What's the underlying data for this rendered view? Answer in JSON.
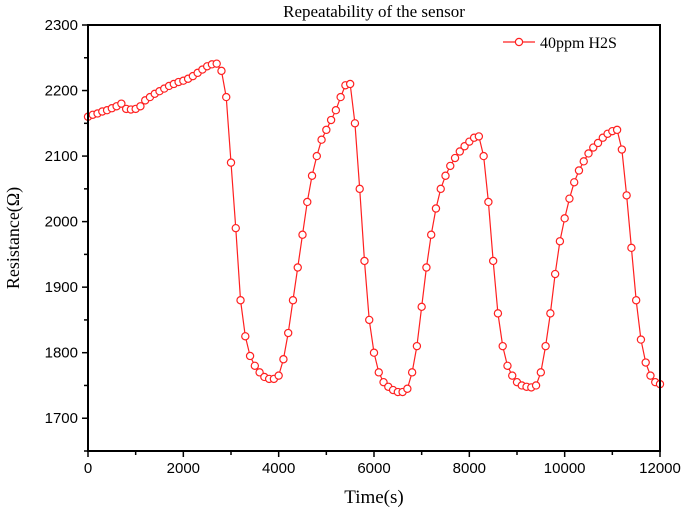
{
  "chart_data": {
    "type": "line",
    "title": "Repeatability of the sensor",
    "xlabel": "Time(s)",
    "ylabel": "Resistance(Ω)",
    "xlim": [
      0,
      12000
    ],
    "ylim": [
      1650,
      2300
    ],
    "xticks": [
      0,
      2000,
      4000,
      6000,
      8000,
      10000,
      12000
    ],
    "yticks": [
      1700,
      1800,
      1900,
      2000,
      2100,
      2200,
      2300
    ],
    "grid": false,
    "legend_position": "top-right",
    "series_color": "#ff2020",
    "series": [
      {
        "name": "40ppm H2S",
        "marker": "open-circle",
        "x": [
          0,
          100,
          200,
          300,
          400,
          500,
          600,
          700,
          800,
          900,
          1000,
          1100,
          1200,
          1300,
          1400,
          1500,
          1600,
          1700,
          1800,
          1900,
          2000,
          2100,
          2200,
          2300,
          2400,
          2500,
          2600,
          2700,
          2800,
          2900,
          3000,
          3100,
          3200,
          3300,
          3400,
          3500,
          3600,
          3700,
          3800,
          3900,
          4000,
          4100,
          4200,
          4300,
          4400,
          4500,
          4600,
          4700,
          4800,
          4900,
          5000,
          5100,
          5200,
          5300,
          5400,
          5500,
          5600,
          5700,
          5800,
          5900,
          6000,
          6100,
          6200,
          6300,
          6400,
          6500,
          6600,
          6700,
          6800,
          6900,
          7000,
          7100,
          7200,
          7300,
          7400,
          7500,
          7600,
          7700,
          7800,
          7900,
          8000,
          8100,
          8200,
          8300,
          8400,
          8500,
          8600,
          8700,
          8800,
          8900,
          9000,
          9100,
          9200,
          9300,
          9400,
          9500,
          9600,
          9700,
          9800,
          9900,
          10000,
          10100,
          10200,
          10300,
          10400,
          10500,
          10600,
          10700,
          10800,
          10900,
          11000,
          11100,
          11200,
          11300,
          11400,
          11500,
          11600,
          11700,
          11800,
          11900,
          12000
        ],
        "y": [
          2160,
          2163,
          2165,
          2168,
          2170,
          2173,
          2176,
          2180,
          2172,
          2171,
          2172,
          2176,
          2185,
          2190,
          2195,
          2199,
          2203,
          2207,
          2210,
          2213,
          2215,
          2218,
          2222,
          2227,
          2232,
          2237,
          2240,
          2241,
          2230,
          2190,
          2090,
          1990,
          1880,
          1825,
          1795,
          1780,
          1770,
          1763,
          1760,
          1760,
          1765,
          1790,
          1830,
          1880,
          1930,
          1980,
          2030,
          2070,
          2100,
          2125,
          2140,
          2155,
          2170,
          2190,
          2208,
          2210,
          2150,
          2050,
          1940,
          1850,
          1800,
          1770,
          1755,
          1748,
          1743,
          1740,
          1740,
          1745,
          1770,
          1810,
          1870,
          1930,
          1980,
          2020,
          2050,
          2070,
          2085,
          2097,
          2107,
          2115,
          2122,
          2128,
          2130,
          2100,
          2030,
          1940,
          1860,
          1810,
          1780,
          1765,
          1755,
          1750,
          1748,
          1747,
          1750,
          1770,
          1810,
          1860,
          1920,
          1970,
          2005,
          2035,
          2060,
          2078,
          2092,
          2104,
          2113,
          2120,
          2128,
          2134,
          2138,
          2140,
          2110,
          2040,
          1960,
          1880,
          1820,
          1785,
          1765,
          1755,
          1752
        ]
      }
    ]
  }
}
